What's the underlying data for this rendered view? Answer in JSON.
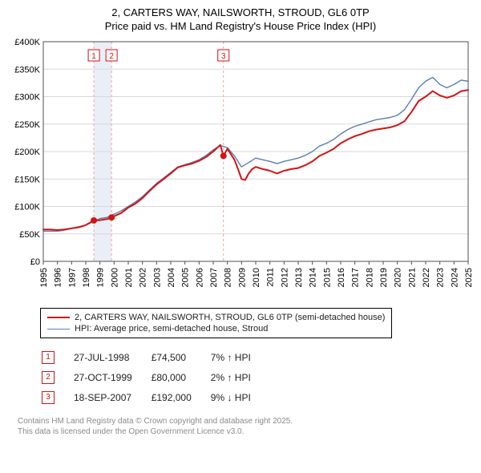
{
  "title_line1": "2, CARTERS WAY, NAILSWORTH, STROUD, GL6 0TP",
  "title_line2": "Price paid vs. HM Land Registry's House Price Index (HPI)",
  "chart": {
    "type": "line",
    "background_color": "#ffffff",
    "plot_border_color": "#4f4f4f",
    "grid_color": "#d9d9d9",
    "vband_color": "#e9eef7",
    "vline_color": "#f3a3a3",
    "x": {
      "min": 1995,
      "max": 2025,
      "tick_step": 1,
      "labels_vertical": true
    },
    "y": {
      "min": 0,
      "max": 400000,
      "tick_step": 50000,
      "prefix": "£",
      "suffix_k": "K"
    },
    "series": [
      {
        "name": "price_paid",
        "label": "2, CARTERS WAY, NAILSWORTH, STROUD, GL6 0TP (semi-detached house)",
        "color": "#d31313",
        "width": 2,
        "data": [
          [
            1995.0,
            58000
          ],
          [
            1995.5,
            58000
          ],
          [
            1996.0,
            57000
          ],
          [
            1996.5,
            58000
          ],
          [
            1997.0,
            60000
          ],
          [
            1997.5,
            62000
          ],
          [
            1998.0,
            66000
          ],
          [
            1998.57,
            74500
          ],
          [
            1999.0,
            75000
          ],
          [
            1999.5,
            77000
          ],
          [
            1999.82,
            80000
          ],
          [
            2000.5,
            88000
          ],
          [
            2001.0,
            98000
          ],
          [
            2001.5,
            105000
          ],
          [
            2002.0,
            115000
          ],
          [
            2002.5,
            128000
          ],
          [
            2003.0,
            140000
          ],
          [
            2003.5,
            150000
          ],
          [
            2004.0,
            160000
          ],
          [
            2004.5,
            171000
          ],
          [
            2005.0,
            175000
          ],
          [
            2005.5,
            178000
          ],
          [
            2006.0,
            183000
          ],
          [
            2006.5,
            190000
          ],
          [
            2007.0,
            200000
          ],
          [
            2007.5,
            212000
          ],
          [
            2007.72,
            192000
          ],
          [
            2008.0,
            205000
          ],
          [
            2008.25,
            195000
          ],
          [
            2008.5,
            185000
          ],
          [
            2008.75,
            168000
          ],
          [
            2009.0,
            150000
          ],
          [
            2009.25,
            148000
          ],
          [
            2009.5,
            160000
          ],
          [
            2009.75,
            168000
          ],
          [
            2010.0,
            172000
          ],
          [
            2010.5,
            168000
          ],
          [
            2011.0,
            165000
          ],
          [
            2011.5,
            160000
          ],
          [
            2012.0,
            165000
          ],
          [
            2012.5,
            168000
          ],
          [
            2013.0,
            170000
          ],
          [
            2013.5,
            175000
          ],
          [
            2014.0,
            182000
          ],
          [
            2014.5,
            192000
          ],
          [
            2015.0,
            198000
          ],
          [
            2015.5,
            205000
          ],
          [
            2016.0,
            215000
          ],
          [
            2016.5,
            222000
          ],
          [
            2017.0,
            228000
          ],
          [
            2017.5,
            232000
          ],
          [
            2018.0,
            237000
          ],
          [
            2018.5,
            240000
          ],
          [
            2019.0,
            242000
          ],
          [
            2019.5,
            244000
          ],
          [
            2020.0,
            248000
          ],
          [
            2020.5,
            255000
          ],
          [
            2021.0,
            272000
          ],
          [
            2021.5,
            292000
          ],
          [
            2022.0,
            300000
          ],
          [
            2022.5,
            310000
          ],
          [
            2023.0,
            302000
          ],
          [
            2023.5,
            298000
          ],
          [
            2024.0,
            302000
          ],
          [
            2024.5,
            310000
          ],
          [
            2025.0,
            312000
          ]
        ]
      },
      {
        "name": "hpi",
        "label": "HPI: Average price, semi-detached house, Stroud",
        "color": "#5b7fb0",
        "width": 1.4,
        "data": [
          [
            1995.0,
            55000
          ],
          [
            1995.5,
            55000
          ],
          [
            1996.0,
            55000
          ],
          [
            1996.5,
            57000
          ],
          [
            1997.0,
            60000
          ],
          [
            1997.5,
            63000
          ],
          [
            1998.0,
            66000
          ],
          [
            1998.5,
            72000
          ],
          [
            1999.0,
            78000
          ],
          [
            1999.5,
            80000
          ],
          [
            2000.0,
            86000
          ],
          [
            2000.5,
            92000
          ],
          [
            2001.0,
            100000
          ],
          [
            2001.5,
            108000
          ],
          [
            2002.0,
            118000
          ],
          [
            2002.5,
            130000
          ],
          [
            2003.0,
            142000
          ],
          [
            2003.5,
            152000
          ],
          [
            2004.0,
            162000
          ],
          [
            2004.5,
            172000
          ],
          [
            2005.0,
            176000
          ],
          [
            2005.5,
            180000
          ],
          [
            2006.0,
            185000
          ],
          [
            2006.5,
            193000
          ],
          [
            2007.0,
            203000
          ],
          [
            2007.5,
            211000
          ],
          [
            2008.0,
            207000
          ],
          [
            2008.5,
            192000
          ],
          [
            2009.0,
            172000
          ],
          [
            2009.5,
            180000
          ],
          [
            2010.0,
            188000
          ],
          [
            2010.5,
            185000
          ],
          [
            2011.0,
            182000
          ],
          [
            2011.5,
            178000
          ],
          [
            2012.0,
            182000
          ],
          [
            2012.5,
            185000
          ],
          [
            2013.0,
            188000
          ],
          [
            2013.5,
            193000
          ],
          [
            2014.0,
            200000
          ],
          [
            2014.5,
            210000
          ],
          [
            2015.0,
            215000
          ],
          [
            2015.5,
            222000
          ],
          [
            2016.0,
            232000
          ],
          [
            2016.5,
            240000
          ],
          [
            2017.0,
            246000
          ],
          [
            2017.5,
            250000
          ],
          [
            2018.0,
            254000
          ],
          [
            2018.5,
            258000
          ],
          [
            2019.0,
            260000
          ],
          [
            2019.5,
            262000
          ],
          [
            2020.0,
            266000
          ],
          [
            2020.5,
            276000
          ],
          [
            2021.0,
            295000
          ],
          [
            2021.5,
            316000
          ],
          [
            2022.0,
            328000
          ],
          [
            2022.5,
            335000
          ],
          [
            2023.0,
            322000
          ],
          [
            2023.5,
            316000
          ],
          [
            2024.0,
            322000
          ],
          [
            2024.5,
            330000
          ],
          [
            2025.0,
            328000
          ]
        ]
      }
    ],
    "markers": [
      {
        "id": "1",
        "x": 1998.57,
        "y": 74500,
        "color": "#d31313"
      },
      {
        "id": "2",
        "x": 1999.82,
        "y": 80000,
        "color": "#d31313"
      },
      {
        "id": "3",
        "x": 2007.72,
        "y": 192000,
        "color": "#d31313"
      }
    ],
    "marker_box_border": "#d31313",
    "marker_box_text": "#d31313",
    "marker_dot_radius": 4
  },
  "legend": {
    "series1": "2, CARTERS WAY, NAILSWORTH, STROUD, GL6 0TP (semi-detached house)",
    "series2": "HPI: Average price, semi-detached house, Stroud",
    "color1": "#d31313",
    "color2": "#5b7fb0"
  },
  "annotations": [
    {
      "id": "1",
      "date": "27-JUL-1998",
      "price": "£74,500",
      "delta": "7% ↑ HPI"
    },
    {
      "id": "2",
      "date": "27-OCT-1999",
      "price": "£80,000",
      "delta": "2% ↑ HPI"
    },
    {
      "id": "3",
      "date": "18-SEP-2007",
      "price": "£192,000",
      "delta": "9% ↓ HPI"
    }
  ],
  "footer": {
    "line1": "Contains HM Land Registry data © Crown copyright and database right 2025.",
    "line2": "This data is licensed under the Open Government Licence v3.0."
  }
}
